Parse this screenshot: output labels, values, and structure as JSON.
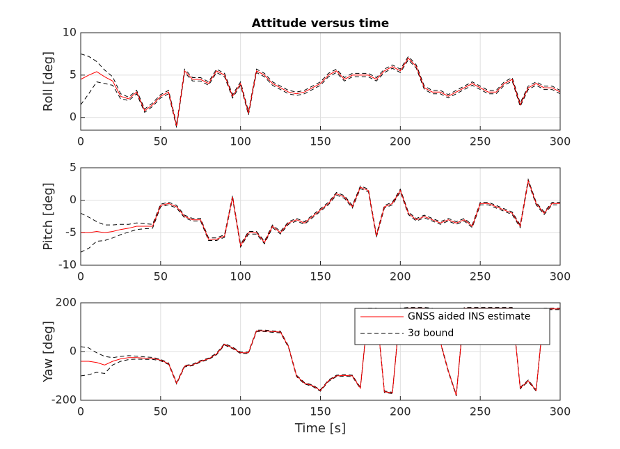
{
  "chart_data": [
    {
      "type": "line",
      "title": "Attitude versus time",
      "ylabel": "Roll [deg]",
      "xlim": [
        0,
        300
      ],
      "xticks": [
        0,
        50,
        100,
        150,
        200,
        250,
        300
      ],
      "ylim": [
        -1.5,
        10
      ],
      "yticks": [
        0,
        5,
        10
      ],
      "grid": true,
      "x": [
        0,
        5,
        10,
        15,
        20,
        25,
        30,
        35,
        40,
        45,
        50,
        55,
        60,
        65,
        70,
        75,
        80,
        85,
        90,
        95,
        100,
        105,
        110,
        115,
        120,
        125,
        130,
        135,
        140,
        145,
        150,
        155,
        160,
        165,
        170,
        175,
        180,
        185,
        190,
        195,
        200,
        205,
        210,
        215,
        220,
        225,
        230,
        235,
        240,
        245,
        250,
        255,
        260,
        265,
        270,
        275,
        280,
        285,
        290,
        295,
        300
      ],
      "series": [
        {
          "color": "#ff0000",
          "values": [
            4.5,
            5,
            5.4,
            4.8,
            4.3,
            2.5,
            2.2,
            3,
            0.8,
            1.5,
            2.5,
            3,
            -1,
            5.5,
            4.5,
            4.5,
            4,
            5.5,
            5,
            2.5,
            4,
            0.5,
            5.5,
            5,
            4,
            3.5,
            3,
            2.8,
            3,
            3.5,
            4,
            5,
            5.5,
            4.5,
            5,
            5,
            5,
            4.5,
            5.5,
            6,
            5.5,
            7,
            6,
            3.5,
            3,
            3,
            2.5,
            3,
            3.5,
            4,
            3.5,
            3,
            3,
            4,
            4.5,
            1.5,
            3.5,
            4,
            3.5,
            3.5,
            3
          ]
        },
        {
          "color": "#000000",
          "dashed": true,
          "upper": [
            7.5,
            7.2,
            6.6,
            5.6,
            4.8,
            2.8,
            2.4,
            3.2,
            1,
            1.7,
            2.7,
            3.2,
            -0.8,
            5.7,
            4.7,
            4.7,
            4.2,
            5.7,
            5.2,
            2.7,
            4.2,
            0.7,
            5.7,
            5.2,
            4.2,
            3.7,
            3.2,
            3,
            3.2,
            3.7,
            4.2,
            5.2,
            5.7,
            4.7,
            5.2,
            5.2,
            5.2,
            4.7,
            5.7,
            6.2,
            5.7,
            7.2,
            6.2,
            3.7,
            3.2,
            3.2,
            2.7,
            3.2,
            3.7,
            4.2,
            3.7,
            3.2,
            3.2,
            4.2,
            4.7,
            1.7,
            3.7,
            4.2,
            3.7,
            3.7,
            3.2
          ],
          "lower": [
            1.5,
            2.8,
            4.2,
            4,
            3.8,
            2.2,
            2,
            2.8,
            0.6,
            1.3,
            2.3,
            2.8,
            -1.2,
            5.3,
            4.3,
            4.3,
            3.8,
            5.3,
            4.8,
            2.3,
            3.8,
            0.3,
            5.3,
            4.8,
            3.8,
            3.3,
            2.8,
            2.6,
            2.8,
            3.3,
            3.8,
            4.8,
            5.3,
            4.3,
            4.8,
            4.8,
            4.8,
            4.3,
            5.3,
            5.8,
            5.3,
            6.8,
            5.8,
            3.3,
            2.8,
            2.8,
            2.3,
            2.8,
            3.3,
            3.8,
            3.3,
            2.8,
            2.8,
            3.8,
            4.3,
            1.3,
            3.3,
            3.8,
            3.3,
            3.3,
            2.8
          ]
        }
      ]
    },
    {
      "type": "line",
      "ylabel": "Pitch [deg]",
      "xlim": [
        0,
        300
      ],
      "xticks": [
        0,
        50,
        100,
        150,
        200,
        250,
        300
      ],
      "ylim": [
        -10,
        5
      ],
      "yticks": [
        -10,
        -5,
        0,
        5
      ],
      "grid": true,
      "x": [
        0,
        5,
        10,
        15,
        20,
        25,
        30,
        35,
        40,
        45,
        50,
        55,
        60,
        65,
        70,
        75,
        80,
        85,
        90,
        95,
        100,
        105,
        110,
        115,
        120,
        125,
        130,
        135,
        140,
        145,
        150,
        155,
        160,
        165,
        170,
        175,
        180,
        185,
        190,
        195,
        200,
        205,
        210,
        215,
        220,
        225,
        230,
        235,
        240,
        245,
        250,
        255,
        260,
        265,
        270,
        275,
        280,
        285,
        290,
        295,
        300
      ],
      "series": [
        {
          "color": "#ff0000",
          "values": [
            -5,
            -5,
            -4.8,
            -5,
            -4.8,
            -4.5,
            -4.3,
            -4,
            -4,
            -4,
            -0.8,
            -0.5,
            -1,
            -2.5,
            -3,
            -3,
            -6,
            -6,
            -5.5,
            0.5,
            -7,
            -5,
            -5,
            -6.5,
            -4,
            -5,
            -3.5,
            -3,
            -3.5,
            -2.5,
            -1.5,
            -0.5,
            1,
            0.5,
            -1,
            2,
            1.5,
            -5.5,
            -1,
            -0.5,
            1.5,
            -2,
            -3,
            -2.5,
            -3,
            -3.5,
            -3,
            -3.5,
            -3,
            -4,
            -0.5,
            -0.5,
            -1,
            -1.5,
            -2,
            -4,
            3,
            -0.5,
            -2,
            -0.5,
            -0.5
          ]
        },
        {
          "color": "#000000",
          "dashed": true,
          "upper": [
            -2,
            -2.6,
            -3.3,
            -3.8,
            -3.8,
            -3.7,
            -3.7,
            -3.5,
            -3.6,
            -3.7,
            -0.6,
            -0.3,
            -0.8,
            -2.3,
            -2.8,
            -2.8,
            -5.8,
            -5.8,
            -5.3,
            0.7,
            -6.8,
            -4.8,
            -4.8,
            -6.3,
            -3.8,
            -4.8,
            -3.3,
            -2.8,
            -3.3,
            -2.3,
            -1.3,
            -0.3,
            1.2,
            0.7,
            -0.8,
            2.2,
            1.7,
            -5.3,
            -0.8,
            -0.3,
            1.7,
            -1.8,
            -2.8,
            -2.3,
            -2.8,
            -3.3,
            -2.8,
            -3.3,
            -2.8,
            -3.8,
            -0.3,
            -0.3,
            -0.8,
            -1.3,
            -1.8,
            -3.8,
            3.2,
            -0.3,
            -1.8,
            -0.3,
            -0.3
          ],
          "lower": [
            -8,
            -7.4,
            -6.3,
            -6.2,
            -5.8,
            -5.3,
            -4.9,
            -4.5,
            -4.4,
            -4.3,
            -1,
            -0.7,
            -1.2,
            -2.7,
            -3.2,
            -3.2,
            -6.2,
            -6.2,
            -5.7,
            0.3,
            -7.2,
            -5.2,
            -5.2,
            -6.7,
            -4.2,
            -5.2,
            -3.7,
            -3.2,
            -3.7,
            -2.7,
            -1.7,
            -0.7,
            0.8,
            0.3,
            -1.2,
            1.8,
            1.3,
            -5.7,
            -1.2,
            -0.7,
            1.3,
            -2.2,
            -3.2,
            -2.7,
            -3.2,
            -3.7,
            -3.2,
            -3.7,
            -3.2,
            -4.2,
            -0.7,
            -0.7,
            -1.2,
            -1.7,
            -2.2,
            -4.2,
            2.8,
            -0.7,
            -2.2,
            -0.7,
            -0.7
          ]
        }
      ]
    },
    {
      "type": "line",
      "ylabel": "Yaw [deg]",
      "xlabel": "Time [s]",
      "xlim": [
        0,
        300
      ],
      "xticks": [
        0,
        50,
        100,
        150,
        200,
        250,
        300
      ],
      "ylim": [
        -200,
        200
      ],
      "yticks": [
        -200,
        0,
        200
      ],
      "grid": true,
      "legend": "upper right",
      "x": [
        0,
        5,
        10,
        15,
        20,
        25,
        30,
        35,
        40,
        45,
        50,
        55,
        60,
        65,
        70,
        75,
        80,
        85,
        90,
        95,
        100,
        105,
        110,
        115,
        120,
        125,
        130,
        135,
        140,
        145,
        150,
        155,
        160,
        165,
        170,
        175,
        180,
        185,
        190,
        195,
        200,
        205,
        210,
        215,
        220,
        225,
        230,
        235,
        240,
        245,
        250,
        255,
        260,
        265,
        270,
        275,
        280,
        285,
        290,
        295,
        300
      ],
      "series": [
        {
          "name": "GNSS aided INS estimate",
          "color": "#ff0000",
          "values": [
            -40,
            -40,
            -45,
            -55,
            -40,
            -30,
            -25,
            -25,
            -27,
            -28,
            -35,
            -50,
            -130,
            -60,
            -55,
            -40,
            -30,
            -10,
            30,
            15,
            -5,
            -5,
            85,
            85,
            82,
            80,
            20,
            -100,
            -130,
            -140,
            -160,
            -120,
            -100,
            -98,
            -100,
            -150,
            175,
            175,
            -165,
            -170,
            175,
            178,
            178,
            178,
            175,
            40,
            -80,
            -180,
            178,
            178,
            178,
            178,
            178,
            178,
            178,
            -150,
            -120,
            -160,
            175,
            175,
            175
          ]
        },
        {
          "name": "3σ bound",
          "color": "#000000",
          "dashed": true,
          "upper": [
            20,
            15,
            -5,
            -20,
            -25,
            -20,
            -17,
            -19,
            -22,
            -24,
            -32,
            -47,
            -127,
            -57,
            -52,
            -37,
            -27,
            -7,
            33,
            18,
            -2,
            -2,
            88,
            88,
            85,
            83,
            23,
            -97,
            -127,
            -137,
            -157,
            -117,
            -97,
            -95,
            -97,
            -147,
            178,
            178,
            -162,
            -167,
            178,
            181,
            181,
            181,
            178,
            43,
            -77,
            -177,
            181,
            181,
            181,
            181,
            181,
            181,
            181,
            -147,
            -117,
            -157,
            178,
            178,
            178
          ],
          "lower": [
            -100,
            -95,
            -85,
            -90,
            -55,
            -40,
            -33,
            -31,
            -32,
            -32,
            -38,
            -53,
            -133,
            -63,
            -58,
            -43,
            -33,
            -13,
            27,
            12,
            -8,
            -8,
            82,
            82,
            79,
            77,
            17,
            -103,
            -133,
            -143,
            -163,
            -123,
            -103,
            -101,
            -103,
            -153,
            172,
            172,
            -168,
            -173,
            172,
            175,
            175,
            175,
            172,
            37,
            -83,
            -183,
            175,
            175,
            175,
            175,
            175,
            175,
            175,
            -153,
            -123,
            -163,
            172,
            172,
            172
          ]
        }
      ]
    }
  ]
}
